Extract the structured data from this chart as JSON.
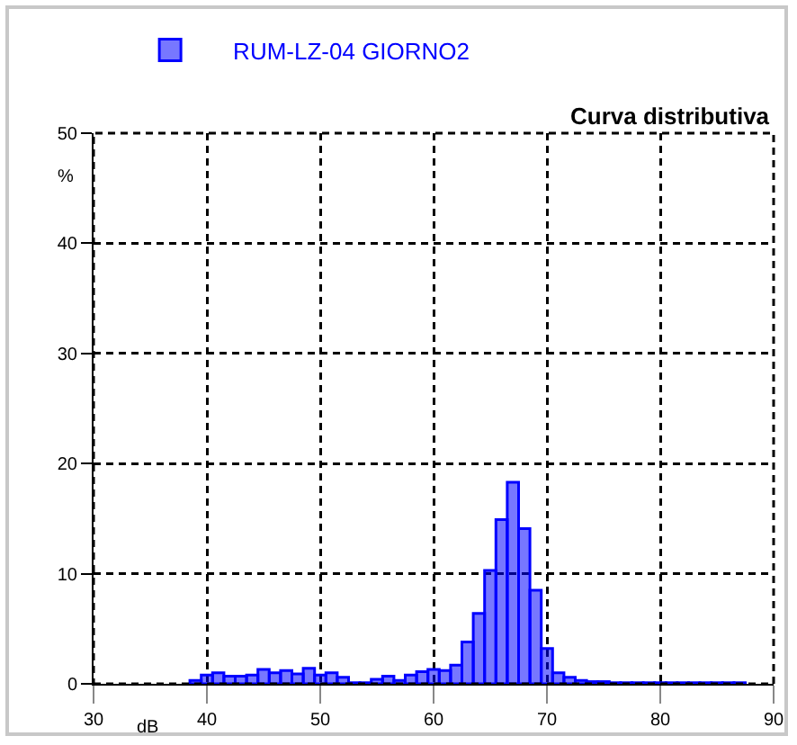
{
  "chart_data": {
    "type": "histogram",
    "title": "Curva distributiva",
    "xlabel": "dB",
    "ylabel": "%",
    "bins": [
      38.5,
      39.5,
      40.5,
      41.5,
      42.5,
      43.5,
      44.5,
      45.5,
      46.5,
      47.5,
      48.5,
      49.5,
      50.5,
      51.5,
      52.5,
      53.5,
      54.5,
      55.5,
      56.5,
      57.5,
      58.5,
      59.5,
      60.5,
      61.5,
      62.5,
      63.5,
      64.5,
      65.5,
      66.5,
      67.5,
      68.5,
      69.5,
      70.5,
      71.5,
      72.5,
      73.5,
      74.5,
      75.5,
      76.5,
      77.5,
      78.5,
      79.5,
      80.5,
      81.5,
      82.5,
      83.5,
      84.5,
      85.5,
      86.5,
      87.5
    ],
    "series": [
      {
        "name": "RUM-LZ-04 GIORNO2",
        "color": "#0000ff",
        "values": [
          0.3,
          0.8,
          1.0,
          0.7,
          0.7,
          0.8,
          1.3,
          1.0,
          1.2,
          0.9,
          1.4,
          0.8,
          1.0,
          0.6,
          0.1,
          0.1,
          0.4,
          0.7,
          0.3,
          0.8,
          1.1,
          1.3,
          1.2,
          1.7,
          3.8,
          6.4,
          10.3,
          14.9,
          18.3,
          14.1,
          8.5,
          3.2,
          1.0,
          0.6,
          0.3,
          0.2,
          0.2,
          0.1,
          0.1,
          0.1,
          0.1,
          0.1,
          0.1,
          0.1,
          0.1,
          0.1,
          0.1,
          0.1,
          0.1
        ]
      }
    ],
    "xlim": [
      30,
      90
    ],
    "xticks": [
      30,
      40,
      50,
      60,
      70,
      80,
      90
    ],
    "ylim": [
      0,
      50
    ],
    "yticks": [
      0,
      10,
      20,
      30,
      40,
      50
    ],
    "grid": true,
    "legend": "top left"
  }
}
